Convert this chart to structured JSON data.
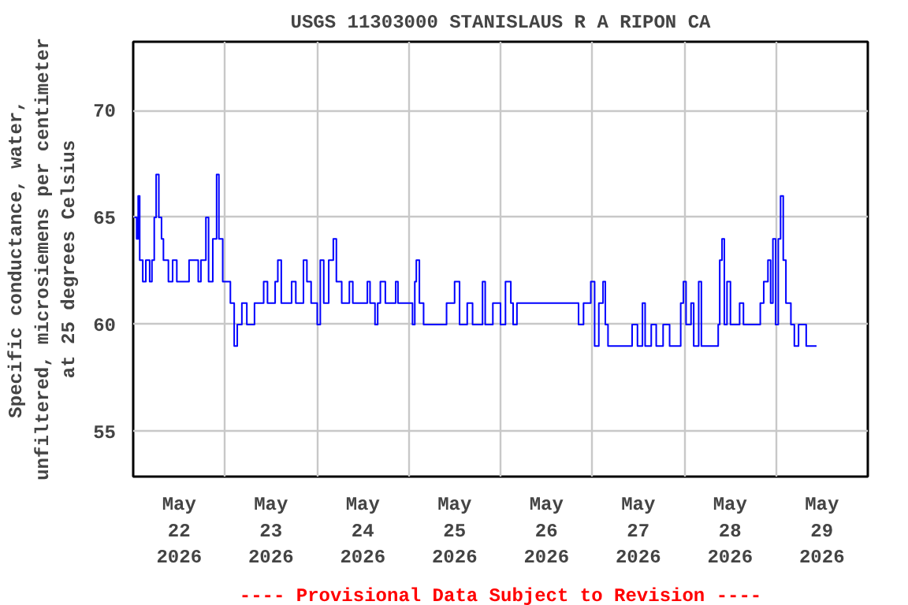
{
  "chart_data": {
    "type": "step",
    "title": "USGS 11303000 STANISLAUS R A RIPON CA",
    "ylabel": "Specific conductance, water,\nunfiltered, microsiemens per centimeter\nat 25 degrees Celsius",
    "annotations": [
      "---- Provisional Data Subject to Revision ----"
    ],
    "xlim": [
      "2026-05-22T00:00",
      "2026-05-30T00:00"
    ],
    "xticks": [
      {
        "value": "2026-05-22T12:00",
        "label": "May\n22\n2026"
      },
      {
        "value": "2026-05-23T12:00",
        "label": "May\n23\n2026"
      },
      {
        "value": "2026-05-24T12:00",
        "label": "May\n24\n2026"
      },
      {
        "value": "2026-05-25T12:00",
        "label": "May\n25\n2026"
      },
      {
        "value": "2026-05-26T12:00",
        "label": "May\n26\n2026"
      },
      {
        "value": "2026-05-27T12:00",
        "label": "May\n27\n2026"
      },
      {
        "value": "2026-05-28T12:00",
        "label": "May\n28\n2026"
      },
      {
        "value": "2026-05-29T12:00",
        "label": "May\n29\n2026"
      },
      {
        "value": "2026-05-23T00:00",
        "label": null
      },
      {
        "value": "2026-05-24T00:00",
        "label": null
      },
      {
        "value": "2026-05-25T00:00",
        "label": null
      },
      {
        "value": "2026-05-26T00:00",
        "label": null
      },
      {
        "value": "2026-05-27T00:00",
        "label": null
      },
      {
        "value": "2026-05-28T00:00",
        "label": null
      },
      {
        "value": "2026-05-29T00:00",
        "label": null
      }
    ],
    "ylim": [
      52.9,
      73.2
    ],
    "yticks": [
      55,
      60,
      65,
      70
    ],
    "grid": true,
    "series": [
      {
        "color": "#0000ff",
        "x": [
          "2026-05-22T00:18",
          "2026-05-22T00:54",
          "2026-05-22T01:18",
          "2026-05-22T01:42",
          "2026-05-22T02:30",
          "2026-05-22T03:18",
          "2026-05-22T04:18",
          "2026-05-22T04:54",
          "2026-05-22T05:30",
          "2026-05-22T06:00",
          "2026-05-22T06:42",
          "2026-05-22T07:24",
          "2026-05-22T07:54",
          "2026-05-22T09:12",
          "2026-05-22T10:18",
          "2026-05-22T11:24",
          "2026-05-22T14:36",
          "2026-05-22T17:00",
          "2026-05-22T17:42",
          "2026-05-22T19:00",
          "2026-05-22T19:42",
          "2026-05-22T20:48",
          "2026-05-22T21:48",
          "2026-05-22T22:24",
          "2026-05-22T23:24",
          "2026-05-23T01:24",
          "2026-05-23T02:24",
          "2026-05-23T03:12",
          "2026-05-23T04:24",
          "2026-05-23T05:42",
          "2026-05-23T07:42",
          "2026-05-23T10:06",
          "2026-05-23T11:06",
          "2026-05-23T13:06",
          "2026-05-23T13:48",
          "2026-05-23T14:42",
          "2026-05-23T17:24",
          "2026-05-23T18:30",
          "2026-05-23T20:30",
          "2026-05-23T21:24",
          "2026-05-23T22:30",
          "2026-05-24T00:06",
          "2026-05-24T00:54",
          "2026-05-24T01:48",
          "2026-05-24T03:06",
          "2026-05-24T04:18",
          "2026-05-24T05:06",
          "2026-05-24T06:30",
          "2026-05-24T08:30",
          "2026-05-24T09:24",
          "2026-05-24T13:12",
          "2026-05-24T13:54",
          "2026-05-24T15:12",
          "2026-05-24T15:54",
          "2026-05-24T16:36",
          "2026-05-24T17:54",
          "2026-05-24T20:36",
          "2026-05-24T21:12",
          "2026-05-25T01:00",
          "2026-05-25T01:36",
          "2026-05-25T02:00",
          "2026-05-25T02:48",
          "2026-05-25T03:54",
          "2026-05-25T05:12",
          "2026-05-25T09:54",
          "2026-05-25T12:00",
          "2026-05-25T13:18",
          "2026-05-25T15:18",
          "2026-05-25T16:42",
          "2026-05-25T19:18",
          "2026-05-25T20:00",
          "2026-05-25T22:00",
          "2026-05-26T00:00",
          "2026-05-26T01:18",
          "2026-05-26T02:42",
          "2026-05-26T03:18",
          "2026-05-26T04:18",
          "2026-05-26T20:24",
          "2026-05-26T21:42",
          "2026-05-26T23:36",
          "2026-05-27T00:36",
          "2026-05-27T01:42",
          "2026-05-27T02:48",
          "2026-05-27T03:24",
          "2026-05-27T04:06",
          "2026-05-27T10:24",
          "2026-05-27T11:48",
          "2026-05-27T13:06",
          "2026-05-27T13:48",
          "2026-05-27T15:24",
          "2026-05-27T16:42",
          "2026-05-27T18:30",
          "2026-05-27T20:12",
          "2026-05-27T23:06",
          "2026-05-27T23:48",
          "2026-05-28T00:30",
          "2026-05-28T01:48",
          "2026-05-28T02:30",
          "2026-05-28T03:48",
          "2026-05-28T04:30",
          "2026-05-28T08:54",
          "2026-05-28T09:18",
          "2026-05-28T09:54",
          "2026-05-28T10:30",
          "2026-05-28T11:12",
          "2026-05-28T12:06",
          "2026-05-28T14:30",
          "2026-05-28T15:30",
          "2026-05-28T19:54",
          "2026-05-28T20:48",
          "2026-05-28T21:54",
          "2026-05-28T22:36",
          "2026-05-28T23:12",
          "2026-05-28T23:54",
          "2026-05-29T00:36",
          "2026-05-29T01:12",
          "2026-05-29T01:54",
          "2026-05-29T02:36",
          "2026-05-29T03:54",
          "2026-05-29T04:48",
          "2026-05-29T05:54",
          "2026-05-29T07:54",
          "2026-05-29T10:36"
        ],
        "values": [
          65,
          64,
          66,
          63,
          62,
          63,
          62,
          63,
          65,
          67,
          65,
          64,
          63,
          62,
          63,
          62,
          63,
          62,
          63,
          65,
          62,
          64,
          67,
          64,
          62,
          61,
          59,
          60,
          61,
          60,
          61,
          62,
          61,
          62,
          63,
          61,
          62,
          61,
          63,
          62,
          61,
          60,
          63,
          61,
          63,
          64,
          62,
          61,
          62,
          61,
          62,
          61,
          60,
          61,
          62,
          61,
          62,
          61,
          60,
          62,
          63,
          61,
          60,
          60,
          61,
          62,
          60,
          61,
          60,
          62,
          60,
          61,
          60,
          62,
          61,
          60,
          61,
          60,
          61,
          62,
          59,
          61,
          62,
          60,
          59,
          60,
          59,
          61,
          59,
          60,
          59,
          60,
          59,
          61,
          62,
          60,
          61,
          59,
          62,
          59,
          60,
          63,
          64,
          60,
          62,
          60,
          61,
          60,
          61,
          62,
          63,
          61,
          64,
          60,
          64,
          66,
          63,
          61,
          60,
          59,
          60,
          59,
          59
        ]
      }
    ]
  }
}
